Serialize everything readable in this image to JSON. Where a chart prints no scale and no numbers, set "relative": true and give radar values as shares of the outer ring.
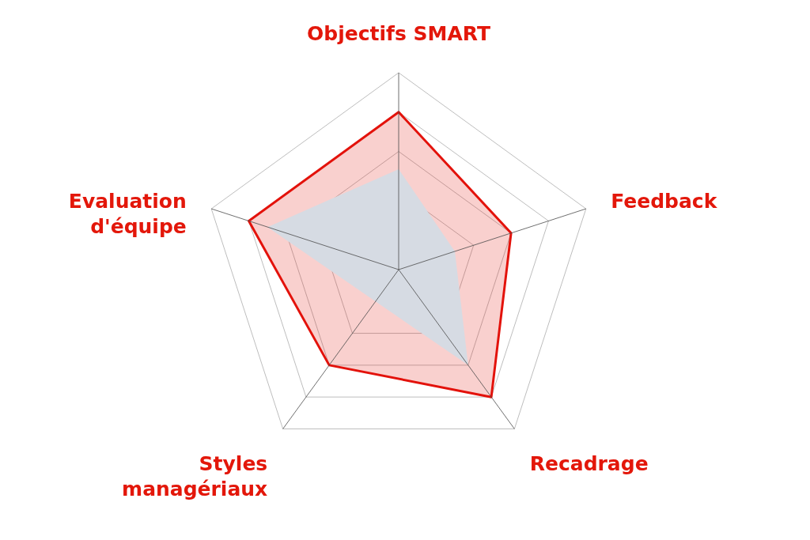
{
  "chart_data": {
    "type": "radar",
    "categories": [
      "Objectifs SMART",
      "Feedback",
      "Recadrage",
      "Styles managériaux",
      "Evaluation d'équipe"
    ],
    "relative": true,
    "grid": true,
    "series": [
      {
        "type": "radar",
        "color": "#e3120b",
        "values": [
          0.8,
          0.6,
          0.8,
          0.6,
          0.8
        ]
      },
      {
        "type": "area",
        "color": "#d6dbe3",
        "values": [
          0.51,
          0.3,
          0.6,
          0.2,
          0.7
        ]
      }
    ]
  }
}
